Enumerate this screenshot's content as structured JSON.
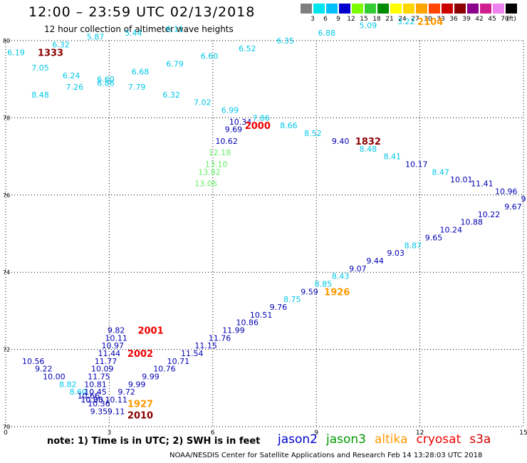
{
  "header": {
    "title": "12:00 – 23:59 UTC 02/13/2018",
    "subtitle": "12 hour collection of altimeter wave heights"
  },
  "colorbar": {
    "unit": "(ft)",
    "bins": [
      {
        "label": "3",
        "color": "#7f7f7f"
      },
      {
        "label": "6",
        "color": "#00e5ee"
      },
      {
        "label": "9",
        "color": "#00bfff"
      },
      {
        "label": "12",
        "color": "#0000cd"
      },
      {
        "label": "15",
        "color": "#7cfc00"
      },
      {
        "label": "18",
        "color": "#32cd32"
      },
      {
        "label": "21",
        "color": "#008b00"
      },
      {
        "label": "24",
        "color": "#ffff00"
      },
      {
        "label": "27",
        "color": "#ffd700"
      },
      {
        "label": "30",
        "color": "#ffa500"
      },
      {
        "label": "33",
        "color": "#ff4500"
      },
      {
        "label": "36",
        "color": "#cd0000"
      },
      {
        "label": "39",
        "color": "#8b0000"
      },
      {
        "label": "42",
        "color": "#8b008b"
      },
      {
        "label": "45",
        "color": "#d02090"
      },
      {
        "label": "70",
        "color": "#ee82ee"
      },
      {
        "label": "",
        "color": "#000000"
      }
    ]
  },
  "chart_data": {
    "type": "scatter",
    "title": "12:00 – 23:59 UTC 02/13/2018",
    "subtitle": "12 hour collection of altimeter wave heights",
    "x_ticks": [
      "0",
      "3",
      "6",
      "9",
      "12",
      "15"
    ],
    "y_ticks": [
      "70",
      "72",
      "74",
      "76",
      "78",
      "80"
    ],
    "xlim": [
      0,
      15
    ],
    "ylim": [
      70,
      80
    ],
    "grid": true,
    "colors": {
      "cyan": "#00c8e8",
      "blue": "#0000b4",
      "green": "#66ee66",
      "red": "#ee0000",
      "orange": "#ff9900",
      "darkred": "#8b0000"
    },
    "points": [
      {
        "x": 0.3,
        "y": 79.7,
        "v": "6.19",
        "c": "cyan"
      },
      {
        "x": 1.6,
        "y": 79.9,
        "v": "6.32",
        "c": "cyan"
      },
      {
        "x": 2.6,
        "y": 80.1,
        "v": "5.87",
        "c": "cyan"
      },
      {
        "x": 3.7,
        "y": 80.2,
        "v": "5.44",
        "c": "cyan"
      },
      {
        "x": 4.9,
        "y": 80.3,
        "v": "6.11",
        "c": "cyan"
      },
      {
        "x": 1.0,
        "y": 79.3,
        "v": "7.05",
        "c": "cyan"
      },
      {
        "x": 1.9,
        "y": 79.1,
        "v": "6.24",
        "c": "cyan"
      },
      {
        "x": 2.9,
        "y": 79.0,
        "v": "6.60",
        "c": "cyan"
      },
      {
        "x": 2.9,
        "y": 78.9,
        "v": "6.86",
        "c": "cyan"
      },
      {
        "x": 3.9,
        "y": 79.2,
        "v": "6.68",
        "c": "cyan"
      },
      {
        "x": 4.9,
        "y": 79.4,
        "v": "6.79",
        "c": "cyan"
      },
      {
        "x": 5.9,
        "y": 79.6,
        "v": "6.60",
        "c": "cyan"
      },
      {
        "x": 7.0,
        "y": 79.8,
        "v": "6.52",
        "c": "cyan"
      },
      {
        "x": 8.1,
        "y": 80.0,
        "v": "6.35",
        "c": "cyan"
      },
      {
        "x": 9.3,
        "y": 80.2,
        "v": "6.88",
        "c": "cyan"
      },
      {
        "x": 10.5,
        "y": 80.4,
        "v": "5.09",
        "c": "cyan"
      },
      {
        "x": 11.6,
        "y": 80.5,
        "v": "3.22",
        "c": "cyan"
      },
      {
        "x": 2.0,
        "y": 78.8,
        "v": "7.26",
        "c": "cyan"
      },
      {
        "x": 3.8,
        "y": 78.8,
        "v": "7.79",
        "c": "cyan"
      },
      {
        "x": 1.0,
        "y": 78.6,
        "v": "8.48",
        "c": "cyan"
      },
      {
        "x": 4.8,
        "y": 78.6,
        "v": "6.32",
        "c": "cyan"
      },
      {
        "x": 5.7,
        "y": 78.4,
        "v": "7.02",
        "c": "cyan"
      },
      {
        "x": 6.5,
        "y": 78.2,
        "v": "6.99",
        "c": "cyan"
      },
      {
        "x": 7.4,
        "y": 78.0,
        "v": "7.86",
        "c": "cyan"
      },
      {
        "x": 8.2,
        "y": 77.8,
        "v": "8.66",
        "c": "cyan"
      },
      {
        "x": 8.9,
        "y": 77.6,
        "v": "8.52",
        "c": "cyan"
      },
      {
        "x": 6.8,
        "y": 77.9,
        "v": "10.34",
        "c": "blue"
      },
      {
        "x": 6.6,
        "y": 77.7,
        "v": "9.69",
        "c": "blue"
      },
      {
        "x": 6.4,
        "y": 77.4,
        "v": "10.62",
        "c": "blue"
      },
      {
        "x": 9.7,
        "y": 77.4,
        "v": "9.40",
        "c": "blue"
      },
      {
        "x": 10.5,
        "y": 77.2,
        "v": "8.48",
        "c": "cyan"
      },
      {
        "x": 11.2,
        "y": 77.0,
        "v": "8.41",
        "c": "cyan"
      },
      {
        "x": 11.9,
        "y": 76.8,
        "v": "10.17",
        "c": "blue"
      },
      {
        "x": 12.6,
        "y": 76.6,
        "v": "8.47",
        "c": "cyan"
      },
      {
        "x": 13.2,
        "y": 76.4,
        "v": "10.01",
        "c": "blue"
      },
      {
        "x": 13.8,
        "y": 76.3,
        "v": "11.41",
        "c": "blue"
      },
      {
        "x": 14.5,
        "y": 76.1,
        "v": "10.96",
        "c": "blue"
      },
      {
        "x": 15.0,
        "y": 75.9,
        "v": "9",
        "c": "blue"
      },
      {
        "x": 6.2,
        "y": 77.1,
        "v": "12.18",
        "c": "green"
      },
      {
        "x": 6.1,
        "y": 76.8,
        "v": "13.10",
        "c": "green"
      },
      {
        "x": 5.9,
        "y": 76.6,
        "v": "13.82",
        "c": "green"
      },
      {
        "x": 5.8,
        "y": 76.3,
        "v": "13.06",
        "c": "green"
      },
      {
        "x": 14.7,
        "y": 75.7,
        "v": "9.67",
        "c": "blue"
      },
      {
        "x": 14.0,
        "y": 75.5,
        "v": "10.22",
        "c": "blue"
      },
      {
        "x": 13.5,
        "y": 75.3,
        "v": "10.88",
        "c": "blue"
      },
      {
        "x": 12.9,
        "y": 75.1,
        "v": "10.24",
        "c": "blue"
      },
      {
        "x": 12.4,
        "y": 74.9,
        "v": "9.65",
        "c": "blue"
      },
      {
        "x": 11.8,
        "y": 74.7,
        "v": "8.87",
        "c": "cyan"
      },
      {
        "x": 11.3,
        "y": 74.5,
        "v": "9.03",
        "c": "blue"
      },
      {
        "x": 10.7,
        "y": 74.3,
        "v": "9.44",
        "c": "blue"
      },
      {
        "x": 10.2,
        "y": 74.1,
        "v": "9.07",
        "c": "blue"
      },
      {
        "x": 9.7,
        "y": 73.9,
        "v": "8.43",
        "c": "cyan"
      },
      {
        "x": 9.2,
        "y": 73.7,
        "v": "8.85",
        "c": "cyan"
      },
      {
        "x": 8.8,
        "y": 73.5,
        "v": "9.59",
        "c": "blue"
      },
      {
        "x": 8.3,
        "y": 73.3,
        "v": "8.75",
        "c": "cyan"
      },
      {
        "x": 7.9,
        "y": 73.1,
        "v": "9.76",
        "c": "blue"
      },
      {
        "x": 7.4,
        "y": 72.9,
        "v": "10.51",
        "c": "blue"
      },
      {
        "x": 7.0,
        "y": 72.7,
        "v": "10.86",
        "c": "blue"
      },
      {
        "x": 6.6,
        "y": 72.5,
        "v": "11.99",
        "c": "blue"
      },
      {
        "x": 6.2,
        "y": 72.3,
        "v": "11.76",
        "c": "blue"
      },
      {
        "x": 5.8,
        "y": 72.1,
        "v": "11.15",
        "c": "blue"
      },
      {
        "x": 5.4,
        "y": 71.9,
        "v": "11.54",
        "c": "blue"
      },
      {
        "x": 5.0,
        "y": 71.7,
        "v": "10.71",
        "c": "blue"
      },
      {
        "x": 4.6,
        "y": 71.5,
        "v": "10.76",
        "c": "blue"
      },
      {
        "x": 4.2,
        "y": 71.3,
        "v": "9.99",
        "c": "blue"
      },
      {
        "x": 3.8,
        "y": 71.1,
        "v": "9.99",
        "c": "blue"
      },
      {
        "x": 3.5,
        "y": 70.9,
        "v": "9.72",
        "c": "blue"
      },
      {
        "x": 3.2,
        "y": 70.7,
        "v": "10.11",
        "c": "blue"
      },
      {
        "x": 0.8,
        "y": 71.7,
        "v": "10.56",
        "c": "blue"
      },
      {
        "x": 1.1,
        "y": 71.5,
        "v": "9.22",
        "c": "blue"
      },
      {
        "x": 1.4,
        "y": 71.3,
        "v": "10.00",
        "c": "blue"
      },
      {
        "x": 1.8,
        "y": 71.1,
        "v": "8.82",
        "c": "cyan"
      },
      {
        "x": 2.1,
        "y": 70.9,
        "v": "8.60",
        "c": "cyan"
      },
      {
        "x": 2.4,
        "y": 70.8,
        "v": "10.66",
        "c": "blue"
      },
      {
        "x": 2.5,
        "y": 70.7,
        "v": "10.05",
        "c": "blue"
      },
      {
        "x": 2.7,
        "y": 70.6,
        "v": "10.36",
        "c": "blue"
      },
      {
        "x": 2.7,
        "y": 70.4,
        "v": "9.35",
        "c": "blue"
      },
      {
        "x": 3.2,
        "y": 70.4,
        "v": "9.11",
        "c": "blue"
      },
      {
        "x": 3.2,
        "y": 72.5,
        "v": "9.82",
        "c": "blue"
      },
      {
        "x": 3.2,
        "y": 72.3,
        "v": "10.11",
        "c": "blue"
      },
      {
        "x": 3.1,
        "y": 72.1,
        "v": "10.97",
        "c": "blue"
      },
      {
        "x": 3.0,
        "y": 71.9,
        "v": "11.44",
        "c": "blue"
      },
      {
        "x": 2.9,
        "y": 71.7,
        "v": "11.77",
        "c": "blue"
      },
      {
        "x": 2.8,
        "y": 71.5,
        "v": "10.09",
        "c": "blue"
      },
      {
        "x": 2.7,
        "y": 71.3,
        "v": "11.75",
        "c": "blue"
      },
      {
        "x": 2.6,
        "y": 71.1,
        "v": "10.81",
        "c": "blue"
      },
      {
        "x": 2.6,
        "y": 70.9,
        "v": "10.45",
        "c": "blue"
      },
      {
        "x": 2.5,
        "y": 70.7,
        "v": "10.30",
        "c": "blue"
      }
    ],
    "pass_labels": [
      {
        "x": 1.3,
        "y": 79.7,
        "v": "1333",
        "c": "darkred"
      },
      {
        "x": 12.3,
        "y": 80.5,
        "v": "2104",
        "c": "orange"
      },
      {
        "x": 7.3,
        "y": 77.8,
        "v": "2000",
        "c": "red"
      },
      {
        "x": 10.5,
        "y": 77.4,
        "v": "1832",
        "c": "darkred"
      },
      {
        "x": 9.6,
        "y": 73.5,
        "v": "1926",
        "c": "orange"
      },
      {
        "x": 4.2,
        "y": 72.5,
        "v": "2001",
        "c": "red"
      },
      {
        "x": 3.9,
        "y": 71.9,
        "v": "2002",
        "c": "red"
      },
      {
        "x": 3.9,
        "y": 70.6,
        "v": "1927",
        "c": "orange"
      },
      {
        "x": 3.9,
        "y": 70.3,
        "v": "2010",
        "c": "darkred"
      }
    ]
  },
  "legend": {
    "note": "note:  1) Time is in UTC;  2) SWH is in feet",
    "satellites": [
      {
        "name": "jason2",
        "color": "#0000cc"
      },
      {
        "name": "jason3",
        "color": "#009900"
      },
      {
        "name": "altika",
        "color": "#ff9900"
      },
      {
        "name": "cryosat",
        "color": "#ee0000"
      },
      {
        "name": "s3a",
        "color": "#cc0000"
      }
    ]
  },
  "footer": {
    "credit": "NOAA/NESDIS Center for Satellite Applications and Research     Feb 14 13:28:03 UTC 2018"
  }
}
